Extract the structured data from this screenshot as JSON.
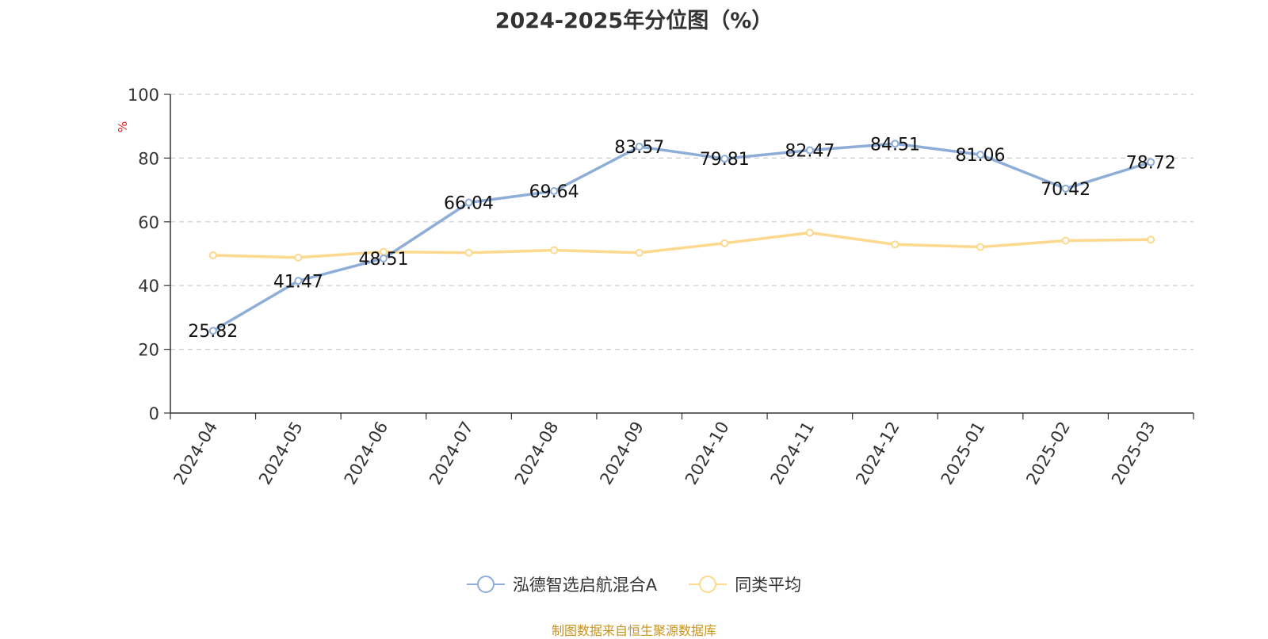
{
  "chart_data": {
    "type": "line",
    "title": "2024-2025年分位图（%）",
    "ylabel": "%",
    "ylim": [
      0,
      100
    ],
    "yticks": [
      0,
      20,
      40,
      60,
      80,
      100
    ],
    "grid": true,
    "legend_position": "bottom",
    "categories": [
      "2024-04",
      "2024-05",
      "2024-06",
      "2024-07",
      "2024-08",
      "2024-09",
      "2024-10",
      "2024-11",
      "2024-12",
      "2025-01",
      "2025-02",
      "2025-03"
    ],
    "series": [
      {
        "name": "泓德智选启航混合A",
        "color": "#8eaed8",
        "values": [
          25.82,
          41.47,
          48.51,
          66.04,
          69.64,
          83.57,
          79.81,
          82.47,
          84.51,
          81.06,
          70.42,
          78.72
        ],
        "show_labels": true
      },
      {
        "name": "同类平均",
        "color": "#fcd98e",
        "values": [
          49.5,
          48.8,
          50.6,
          50.3,
          51.1,
          50.3,
          53.3,
          56.6,
          52.9,
          52.1,
          54.1,
          54.4
        ],
        "show_labels": false
      }
    ],
    "source": "制图数据来自恒生聚源数据库"
  }
}
